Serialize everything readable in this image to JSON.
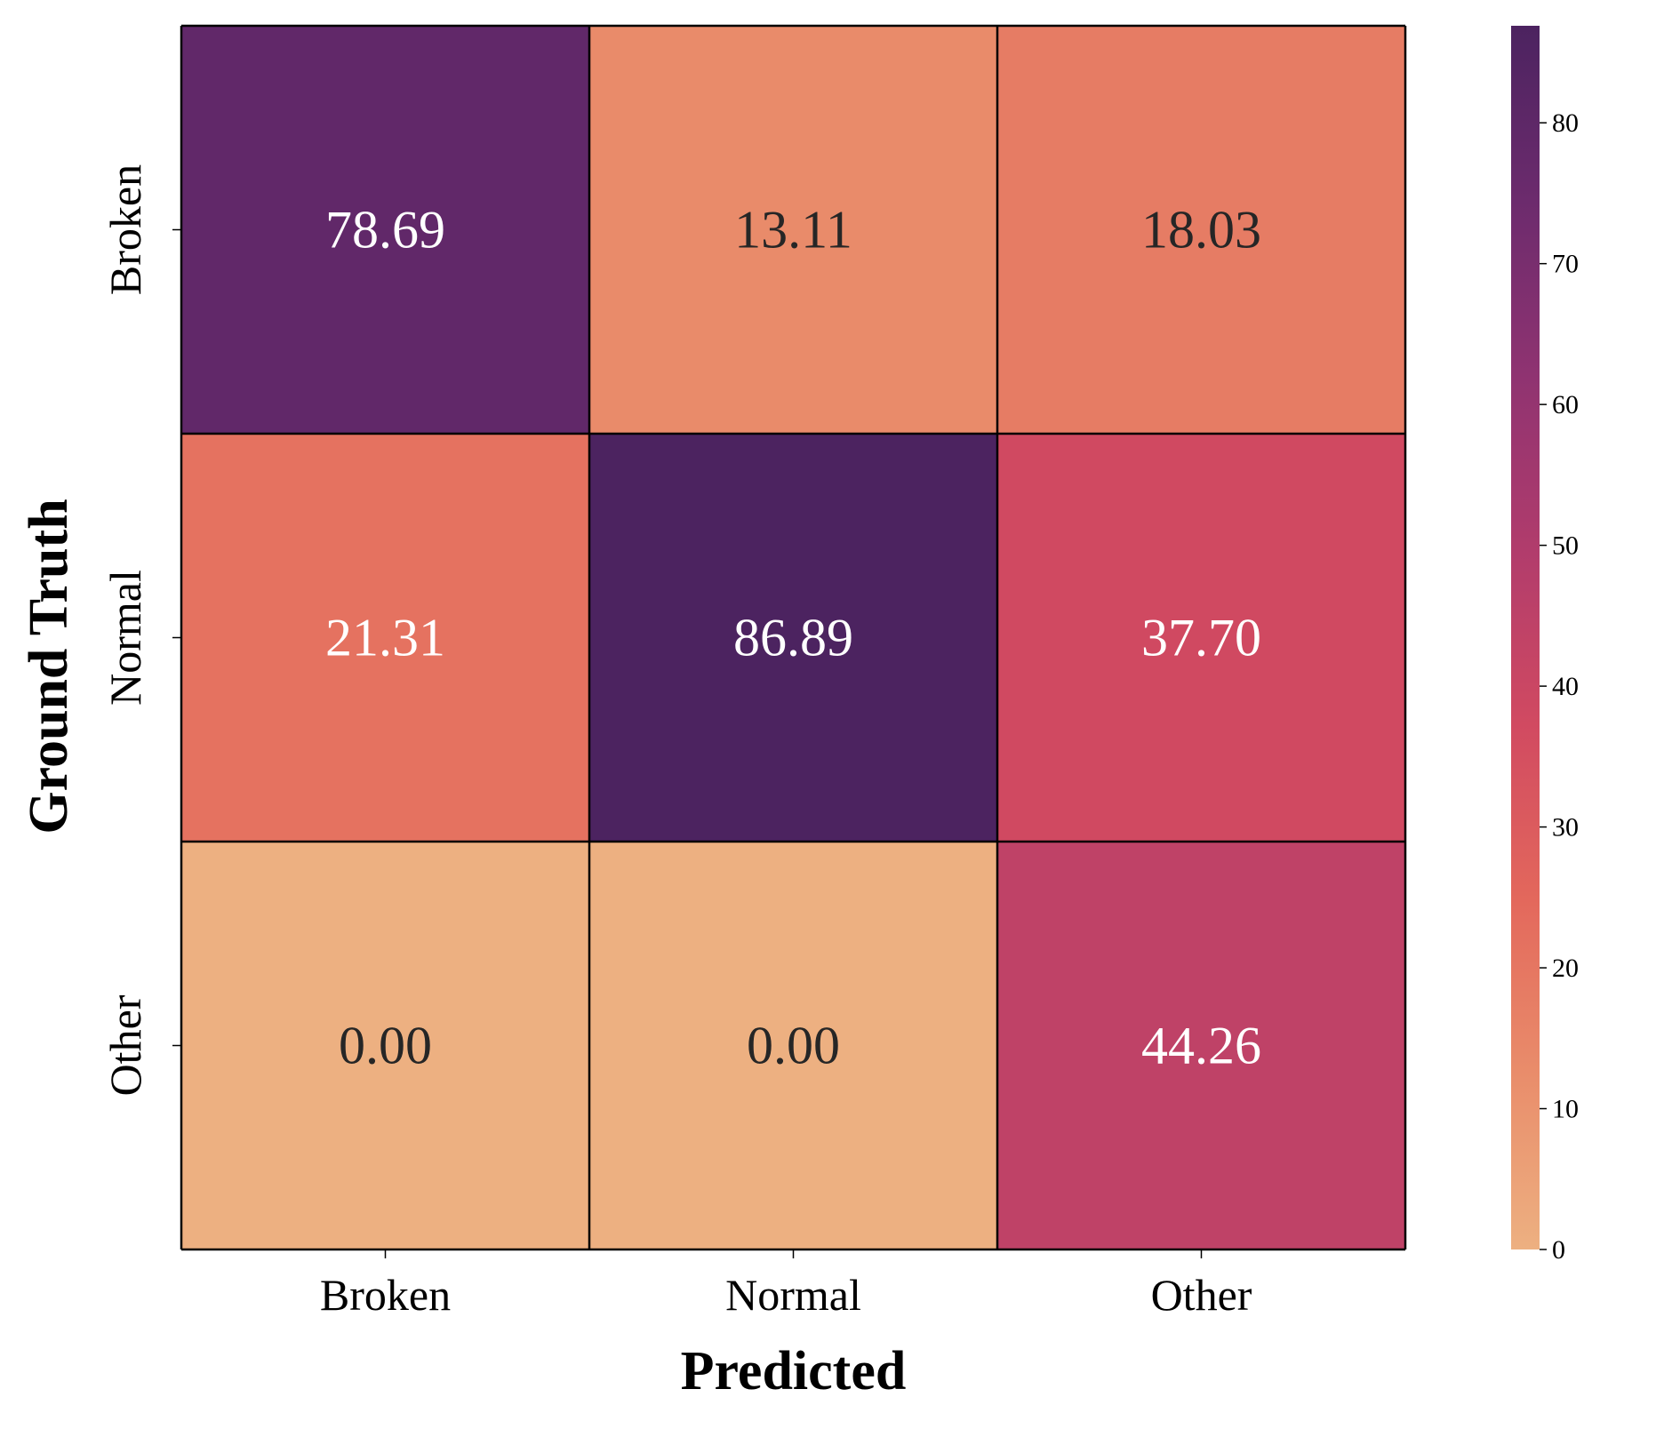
{
  "chart_data": {
    "type": "heatmap",
    "title": "",
    "xlabel": "Predicted",
    "ylabel": "Ground Truth",
    "x_categories": [
      "Broken",
      "Normal",
      "Other"
    ],
    "y_categories": [
      "Broken",
      "Normal",
      "Other"
    ],
    "matrix": [
      [
        78.69,
        13.11,
        18.03
      ],
      [
        21.31,
        86.89,
        37.7
      ],
      [
        0.0,
        0.0,
        44.26
      ]
    ],
    "cell_text": [
      [
        "78.69",
        "13.11",
        "18.03"
      ],
      [
        "21.31",
        "86.89",
        "37.70"
      ],
      [
        "0.00",
        "0.00",
        "44.26"
      ]
    ],
    "colorbar": {
      "range": [
        0,
        86.89
      ],
      "ticks": [
        0,
        10,
        20,
        30,
        40,
        50,
        60,
        70,
        80
      ],
      "tick_labels": [
        "0",
        "10",
        "20",
        "30",
        "40",
        "50",
        "60",
        "70",
        "80"
      ],
      "colormap": "flare",
      "stops": [
        "#edb081",
        "#e98d6b",
        "#e3685c",
        "#d14a61",
        "#b13c6c",
        "#8f3371",
        "#6c2b6d",
        "#4c2360"
      ]
    },
    "grid": false,
    "legend": "colorbar-right"
  }
}
